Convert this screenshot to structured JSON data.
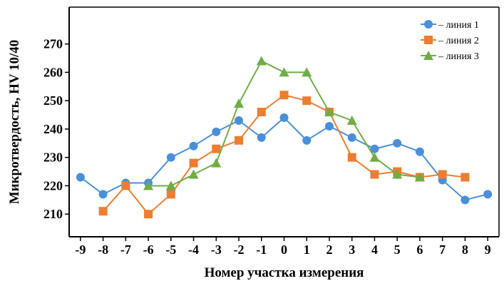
{
  "chart_data": {
    "type": "line",
    "xlabel": "Номер участка измерения",
    "ylabel": "Микротвердость, HV 10/40",
    "x_ticks": [
      -9,
      -8,
      -7,
      -6,
      -5,
      -4,
      -3,
      -2,
      -1,
      0,
      1,
      2,
      3,
      4,
      5,
      6,
      7,
      8,
      9
    ],
    "y_ticks": [
      210,
      220,
      230,
      240,
      250,
      260,
      270
    ],
    "xlim": [
      -9.5,
      9.5
    ],
    "ylim": [
      202,
      283
    ],
    "grid": false,
    "legend_position": "top-right",
    "series": [
      {
        "name": "– линия 1",
        "color": "#4a90d9",
        "marker": "circle",
        "x": [
          -9,
          -8,
          -7,
          -6,
          -5,
          -4,
          -3,
          -2,
          -1,
          0,
          1,
          2,
          3,
          4,
          5,
          6,
          7,
          8,
          9
        ],
        "values": [
          223,
          217,
          221,
          221,
          230,
          234,
          239,
          243,
          237,
          244,
          236,
          241,
          237,
          233,
          235,
          232,
          222,
          215,
          217
        ]
      },
      {
        "name": "– линия 2",
        "color": "#ed7d31",
        "marker": "square",
        "x": [
          -8,
          -7,
          -6,
          -5,
          -4,
          -3,
          -2,
          -1,
          0,
          1,
          2,
          3,
          4,
          5,
          6,
          7,
          8
        ],
        "values": [
          211,
          220,
          210,
          217,
          228,
          233,
          236,
          246,
          252,
          250,
          246,
          230,
          224,
          225,
          223,
          224,
          223
        ]
      },
      {
        "name": "– линия 3",
        "color": "#70ad47",
        "marker": "triangle",
        "x": [
          -6,
          -5,
          -4,
          -3,
          -2,
          -1,
          0,
          1,
          2,
          3,
          4,
          5,
          6
        ],
        "values": [
          220,
          220,
          224,
          228,
          249,
          264,
          260,
          260,
          246,
          243,
          230,
          224,
          223
        ]
      }
    ]
  }
}
